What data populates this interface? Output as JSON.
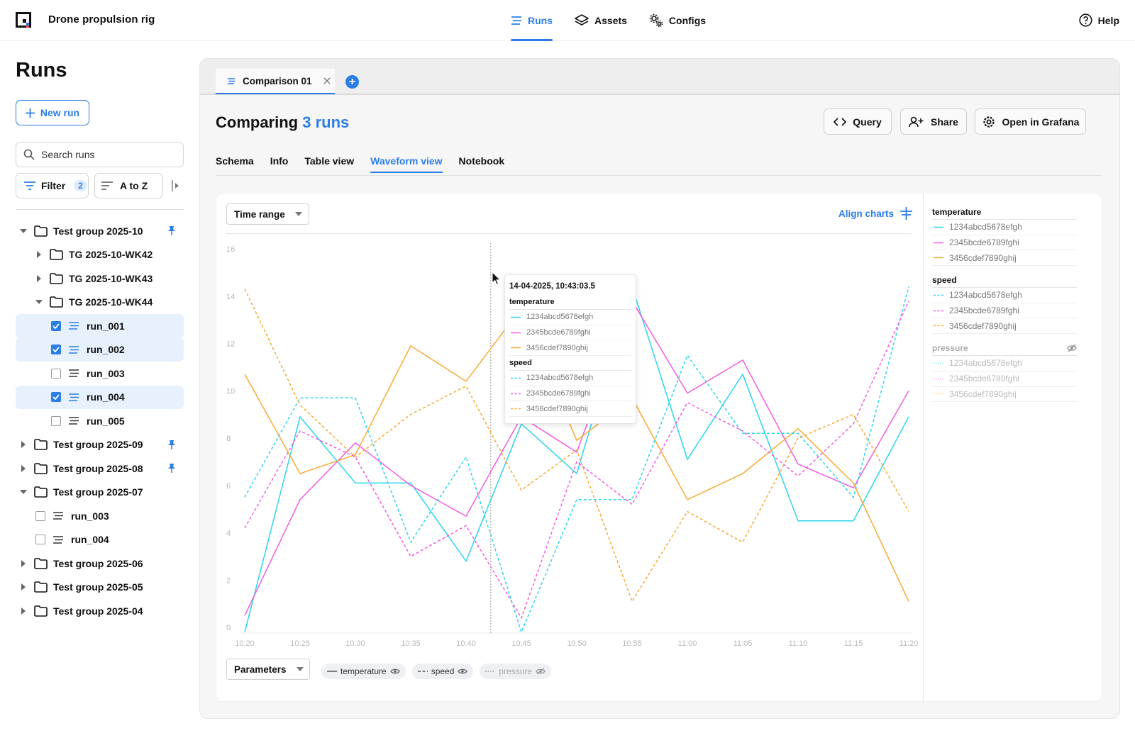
{
  "app": {
    "title": "Drone propulsion rig",
    "logo_icon": "app-logo-icon",
    "accent": "#2b7de9"
  },
  "nav": {
    "items": [
      {
        "label": "Runs",
        "icon": "runs-icon",
        "active": true
      },
      {
        "label": "Assets",
        "icon": "layers-icon",
        "active": false
      },
      {
        "label": "Configs",
        "icon": "gears-icon",
        "active": false
      }
    ],
    "help": "Help"
  },
  "sidebar": {
    "title": "Runs",
    "new_run": "New run",
    "search_placeholder": "Search runs",
    "filter_label": "Filter",
    "filter_count": "2",
    "sort_label": "A to Z",
    "tree": [
      {
        "label": "Test group 2025-10",
        "pinned": true,
        "expanded": true
      },
      {
        "label": "TG 2025-10-WK42"
      },
      {
        "label": "TG 2025-10-WK43"
      },
      {
        "label": "TG 2025-10-WK44"
      },
      {
        "label": "run_001",
        "checked": true
      },
      {
        "label": "run_002",
        "checked": true
      },
      {
        "label": "run_003",
        "checked": false
      },
      {
        "label": "run_004",
        "checked": true
      },
      {
        "label": "run_005",
        "checked": false
      },
      {
        "label": "Test group 2025-09",
        "pinned": true
      },
      {
        "label": "Test group 2025-08",
        "pinned": true
      },
      {
        "label": "Test group 2025-07",
        "expanded": true
      },
      {
        "label": "run_003",
        "checked": false
      },
      {
        "label": "run_004",
        "checked": false
      },
      {
        "label": "Test group 2025-06"
      },
      {
        "label": "Test group 2025-05"
      },
      {
        "label": "Test group 2025-04"
      }
    ]
  },
  "main": {
    "doc_tab": "Comparison 01",
    "title_prefix": "Comparing",
    "title_count": "3 runs",
    "actions": {
      "query": "Query",
      "share": "Share",
      "grafana": "Open in Grafana"
    },
    "subtabs": [
      "Schema",
      "Info",
      "Table view",
      "Waveform view",
      "Notebook"
    ],
    "active_subtab": "Waveform view",
    "time_range": "Time range",
    "align_charts": "Align charts",
    "parameters": "Parameters",
    "chips": [
      {
        "label": "temperature",
        "visible": true
      },
      {
        "label": "speed",
        "visible": true
      },
      {
        "label": "pressure",
        "visible": false
      }
    ]
  },
  "tooltip": {
    "timestamp": "14-04-2025, 10:43:03.5",
    "sections": [
      {
        "name": "temperature",
        "items": [
          "1234abcd5678efgh",
          "2345bcde6789fghi",
          "3456cdef7890ghij"
        ]
      },
      {
        "name": "speed",
        "items": [
          "1234abcd5678efgh",
          "2345bcde6789fghi",
          "3456cdef7890ghij"
        ]
      }
    ]
  },
  "legend": [
    {
      "name": "temperature",
      "visible": true,
      "items": [
        "1234abcd5678efgh",
        "2345bcde6789fghi",
        "3456cdef7890ghij"
      ]
    },
    {
      "name": "speed",
      "visible": true,
      "items": [
        "1234abcd5678efgh",
        "2345bcde6789fghi",
        "3456cdef7890ghij"
      ]
    },
    {
      "name": "pressure",
      "visible": false,
      "items": [
        "1234abcd5678efgh",
        "2345bcde6789fghi",
        "3456cdef7890ghij"
      ]
    }
  ],
  "chart_data": {
    "type": "line",
    "x": [
      "10:20",
      "10:25",
      "10:30",
      "10:35",
      "10:40",
      "10:45",
      "10:50",
      "10:55",
      "11:00",
      "11:05",
      "11:10",
      "11:15",
      "11:20"
    ],
    "ylim": [
      0,
      16
    ],
    "yticks": [
      0,
      2,
      4,
      6,
      8,
      10,
      12,
      14,
      16
    ],
    "grid": false,
    "hover_x": "10:43",
    "series_colors": {
      "1234abcd5678efgh": "#2ad4ef",
      "2345bcde6789fghi": "#f25ce0",
      "3456cdef7890ghij": "#f7a934"
    },
    "series": [
      {
        "name": "1234abcd5678efgh",
        "parameter": "temperature",
        "style": "solid",
        "color": "#2ad4ef",
        "values": [
          -0.2,
          8.9,
          6.1,
          6.1,
          2.8,
          8.6,
          6.5,
          14.4,
          7.1,
          10.7,
          4.5,
          4.5,
          8.9
        ]
      },
      {
        "name": "2345bcde6789fghi",
        "parameter": "temperature",
        "style": "solid",
        "color": "#f25ce0",
        "values": [
          0.5,
          5.4,
          7.8,
          6.0,
          4.7,
          8.9,
          7.4,
          13.8,
          9.9,
          11.3,
          6.9,
          5.9,
          10.0
        ]
      },
      {
        "name": "3456cdef7890ghij",
        "parameter": "temperature",
        "style": "solid",
        "color": "#f7a934",
        "values": [
          10.7,
          6.5,
          7.3,
          11.9,
          10.4,
          13.5,
          7.9,
          9.7,
          5.4,
          6.5,
          8.4,
          6.1,
          1.1
        ]
      },
      {
        "name": "1234abcd5678efgh",
        "parameter": "speed",
        "style": "dashed",
        "color": "#2ad4ef",
        "values": [
          5.5,
          9.7,
          9.7,
          3.6,
          7.2,
          -0.2,
          5.4,
          5.4,
          11.5,
          8.2,
          8.2,
          5.5,
          14.4
        ]
      },
      {
        "name": "2345bcde6789fghi",
        "parameter": "speed",
        "style": "dashed",
        "color": "#f25ce0",
        "values": [
          4.2,
          8.3,
          7.2,
          3.0,
          4.3,
          0.4,
          7.0,
          5.2,
          9.5,
          8.3,
          6.4,
          8.6,
          13.8
        ]
      },
      {
        "name": "3456cdef7890ghij",
        "parameter": "speed",
        "style": "dashed",
        "color": "#f7a934",
        "values": [
          14.3,
          9.4,
          7.2,
          9.0,
          10.2,
          5.8,
          7.5,
          1.1,
          4.9,
          3.6,
          8.0,
          9.0,
          4.9
        ]
      }
    ]
  }
}
